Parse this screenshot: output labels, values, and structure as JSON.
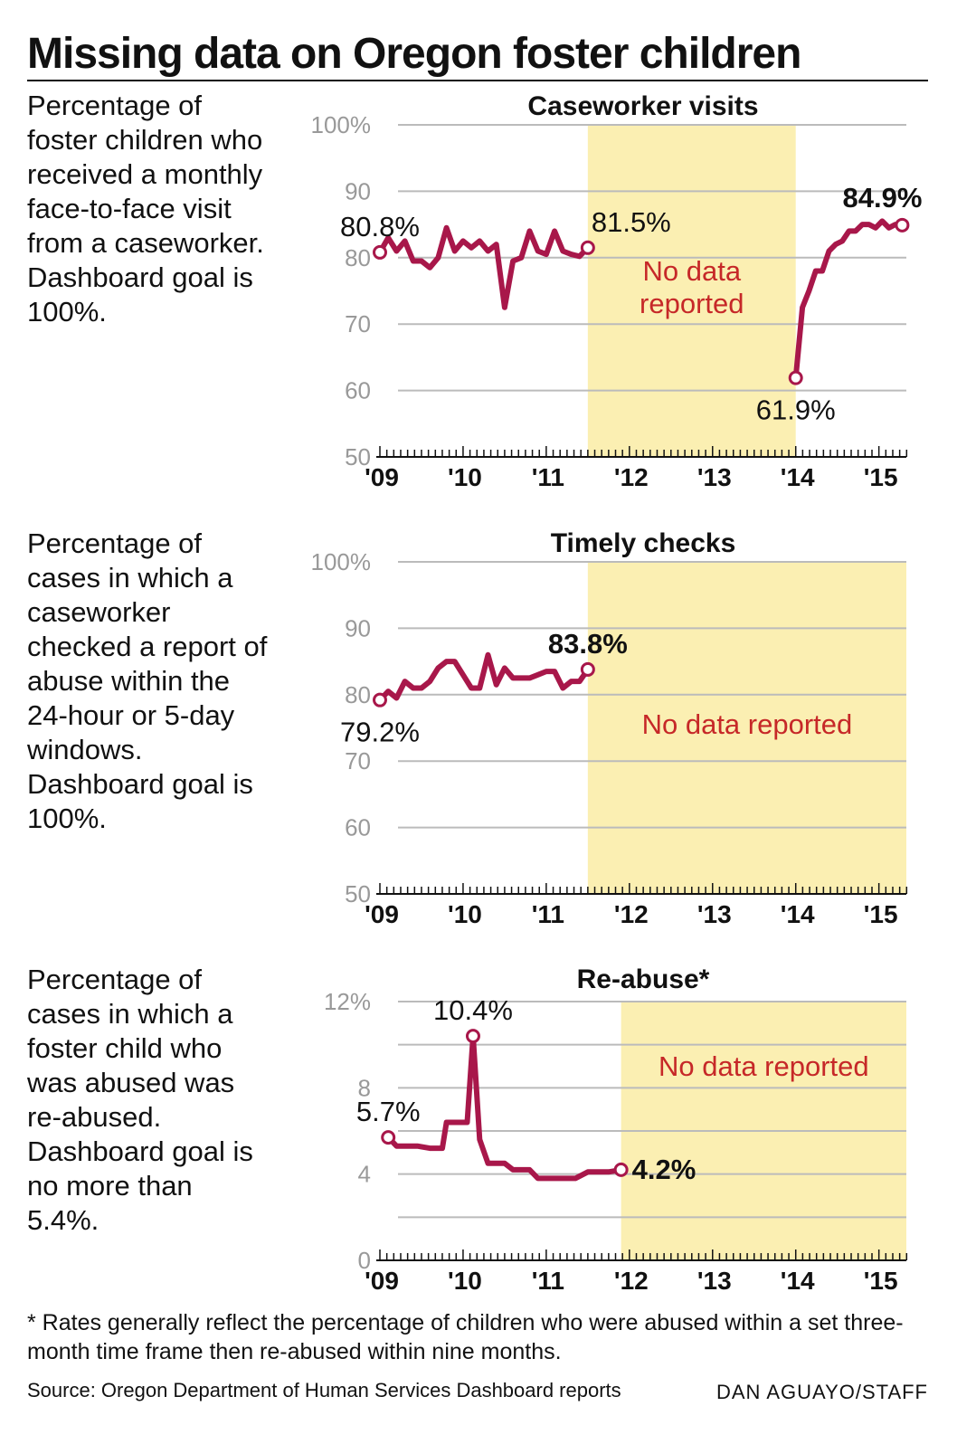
{
  "headline": "Missing data on Oregon foster children",
  "footnote": "* Rates generally reflect the percentage of children who were abused within a set three-month time frame then re-abused within nine months.",
  "source": "Source: Oregon Department of Human Services Dashboard reports",
  "credit": "DAN AGUAYO/STAFF",
  "colors": {
    "line": "#a8174a",
    "shade": "#fbefb2",
    "no_data_text": "#c62828",
    "grid": "#bbbbbb",
    "axis_text": "#999999"
  },
  "descriptions": [
    "Percentage of\nfoster children who\nreceived a monthly\nface-to-face visit\nfrom a caseworker.\nDashboard goal is\n100%.",
    "Percentage of\ncases in which a\ncaseworker\nchecked a report of\nabuse within the\n24-hour or 5-day\nwindows.\nDashboard goal is\n100%.",
    "Percentage of\ncases in which a\nfoster child who\nwas abused was\nre-abused.\nDashboard goal is\nno more than\n5.4%."
  ],
  "chart_data": [
    {
      "type": "line",
      "title": "Caseworker visits",
      "xlabel": "",
      "ylabel": "",
      "ylim": [
        50,
        100
      ],
      "xlim": [
        2009,
        2015.33
      ],
      "y_ticks": [
        50,
        60,
        70,
        80,
        90,
        100
      ],
      "y_tick_labels": [
        "50",
        "60",
        "70",
        "80",
        "90",
        "100%"
      ],
      "x_ticks": [
        2009,
        2010,
        2011,
        2012,
        2013,
        2014,
        2015
      ],
      "x_tick_labels": [
        "'09",
        "'10",
        "'11",
        "'12",
        "'13",
        "'14",
        "'15"
      ],
      "grid": true,
      "no_data_range": [
        2011.5,
        2014.0
      ],
      "no_data_label": "No data reported",
      "series": [
        {
          "name": "",
          "segments": [
            {
              "x": [
                2009.0,
                2009.1,
                2009.2,
                2009.3,
                2009.4,
                2009.5,
                2009.6,
                2009.7,
                2009.8,
                2009.9,
                2010.0,
                2010.1,
                2010.2,
                2010.3,
                2010.4,
                2010.5,
                2010.6,
                2010.7,
                2010.8,
                2010.9,
                2011.0,
                2011.1,
                2011.2,
                2011.3,
                2011.4,
                2011.5
              ],
              "y": [
                80.8,
                83,
                81,
                82.5,
                79.5,
                79.5,
                78.5,
                80,
                84.5,
                81,
                82.5,
                81.5,
                82.5,
                81,
                82,
                72.5,
                79.5,
                80,
                84,
                81,
                80.5,
                84,
                81,
                80.5,
                80.2,
                81.5
              ]
            },
            {
              "x": [
                2014.0,
                2014.08,
                2014.16,
                2014.24,
                2014.32,
                2014.4,
                2014.48,
                2014.56,
                2014.64,
                2014.72,
                2014.8,
                2014.88,
                2014.96,
                2015.04,
                2015.12,
                2015.2,
                2015.28
              ],
              "y": [
                61.9,
                72.5,
                75,
                78,
                78,
                81,
                82,
                82.5,
                84,
                84,
                85,
                85,
                84.5,
                85.5,
                84.5,
                85,
                84.9
              ]
            }
          ]
        }
      ],
      "annotations": [
        {
          "text": "80.8%",
          "x": 2009.0,
          "y": 80.8,
          "bold": false,
          "pos": "above"
        },
        {
          "text": "81.5%",
          "x": 2011.5,
          "y": 81.5,
          "bold": false,
          "pos": "above-right"
        },
        {
          "text": "61.9%",
          "x": 2014.0,
          "y": 61.9,
          "bold": false,
          "pos": "below"
        },
        {
          "text": "84.9%",
          "x": 2015.28,
          "y": 84.9,
          "bold": true,
          "pos": "above-left"
        }
      ]
    },
    {
      "type": "line",
      "title": "Timely checks",
      "xlabel": "",
      "ylabel": "",
      "ylim": [
        50,
        100
      ],
      "xlim": [
        2009,
        2015.33
      ],
      "y_ticks": [
        50,
        60,
        70,
        80,
        90,
        100
      ],
      "y_tick_labels": [
        "50",
        "60",
        "70",
        "80",
        "90",
        "100%"
      ],
      "x_ticks": [
        2009,
        2010,
        2011,
        2012,
        2013,
        2014,
        2015
      ],
      "x_tick_labels": [
        "'09",
        "'10",
        "'11",
        "'12",
        "'13",
        "'14",
        "'15"
      ],
      "grid": true,
      "no_data_range": [
        2011.5,
        2015.33
      ],
      "no_data_label": "No data reported",
      "series": [
        {
          "name": "",
          "segments": [
            {
              "x": [
                2009.0,
                2009.1,
                2009.2,
                2009.3,
                2009.4,
                2009.5,
                2009.6,
                2009.7,
                2009.8,
                2009.9,
                2010.0,
                2010.1,
                2010.2,
                2010.3,
                2010.4,
                2010.5,
                2010.6,
                2010.7,
                2010.8,
                2010.9,
                2011.0,
                2011.1,
                2011.2,
                2011.3,
                2011.4,
                2011.5
              ],
              "y": [
                79.2,
                80.5,
                79.5,
                82,
                81,
                81,
                82,
                84,
                85,
                85,
                83,
                81,
                81,
                86,
                81.5,
                84,
                82.5,
                82.5,
                82.5,
                83,
                83.5,
                83.5,
                81,
                82,
                82,
                83.8
              ]
            }
          ]
        }
      ],
      "annotations": [
        {
          "text": "79.2%",
          "x": 2009.0,
          "y": 79.2,
          "bold": false,
          "pos": "below"
        },
        {
          "text": "83.8%",
          "x": 2011.5,
          "y": 83.8,
          "bold": true,
          "pos": "above"
        }
      ]
    },
    {
      "type": "line",
      "title": "Re-abuse*",
      "xlabel": "",
      "ylabel": "",
      "ylim": [
        0,
        12
      ],
      "xlim": [
        2009,
        2015.33
      ],
      "y_ticks": [
        0,
        2,
        4,
        6,
        8,
        10,
        12
      ],
      "y_tick_labels": [
        "0",
        "",
        "4",
        "",
        "8",
        "",
        "12%"
      ],
      "x_ticks": [
        2009,
        2010,
        2011,
        2012,
        2013,
        2014,
        2015
      ],
      "x_tick_labels": [
        "'09",
        "'10",
        "'11",
        "'12",
        "'13",
        "'14",
        "'15"
      ],
      "grid": true,
      "no_data_range": [
        2011.9,
        2015.33
      ],
      "no_data_label": "No data reported",
      "series": [
        {
          "name": "",
          "segments": [
            {
              "x": [
                2009.1,
                2009.2,
                2009.35,
                2009.45,
                2009.6,
                2009.75,
                2009.8,
                2009.95,
                2010.05,
                2010.12,
                2010.2,
                2010.3,
                2010.4,
                2010.5,
                2010.6,
                2010.65,
                2010.8,
                2010.9,
                2011.0,
                2011.1,
                2011.25,
                2011.35,
                2011.5,
                2011.6,
                2011.75,
                2011.9
              ],
              "y": [
                5.7,
                5.3,
                5.3,
                5.3,
                5.2,
                5.2,
                6.4,
                6.4,
                6.4,
                10.4,
                5.6,
                4.5,
                4.5,
                4.5,
                4.2,
                4.2,
                4.2,
                3.8,
                3.8,
                3.8,
                3.8,
                3.8,
                4.1,
                4.1,
                4.1,
                4.2
              ]
            }
          ]
        }
      ],
      "annotations": [
        {
          "text": "5.7%",
          "x": 2009.1,
          "y": 5.7,
          "bold": false,
          "pos": "above"
        },
        {
          "text": "10.4%",
          "x": 2010.12,
          "y": 10.4,
          "bold": false,
          "pos": "above"
        },
        {
          "text": "4.2%",
          "x": 2011.9,
          "y": 4.2,
          "bold": true,
          "pos": "right"
        }
      ]
    }
  ]
}
